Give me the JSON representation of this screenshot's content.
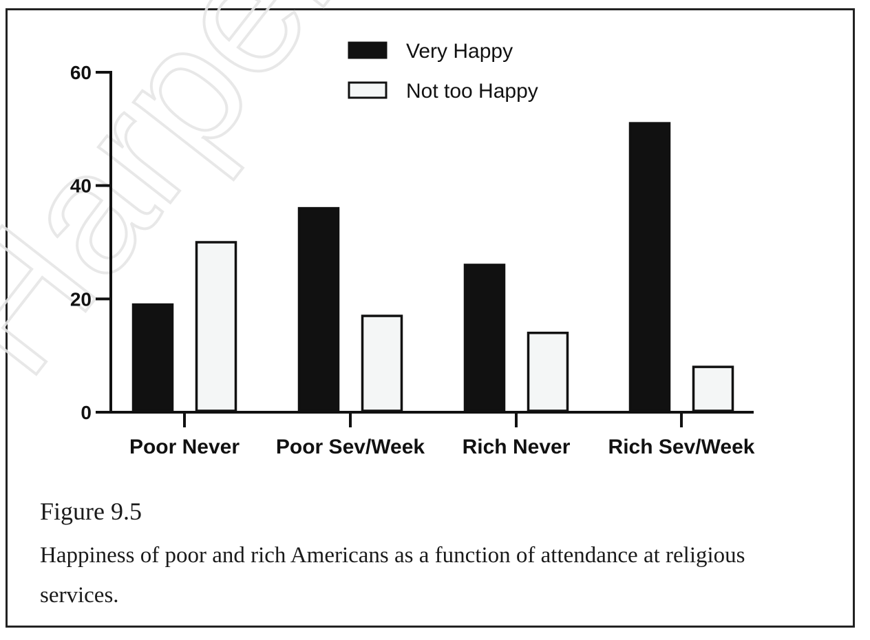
{
  "chart_data": {
    "type": "bar",
    "categories": [
      "Poor Never",
      "Poor Sev/Week",
      "Rich Never",
      "Rich Sev/Week"
    ],
    "series": [
      {
        "name": "Very Happy",
        "values": [
          19,
          36,
          26,
          51
        ],
        "color": "#111111"
      },
      {
        "name": "Not too Happy",
        "values": [
          30,
          17,
          14,
          8
        ],
        "color": "#f4f6f6"
      }
    ],
    "yticks": [
      0,
      20,
      40,
      60
    ],
    "ylim": [
      0,
      60
    ],
    "legend_position": "top-center",
    "grid": false
  },
  "caption": {
    "title": "Figure 9.5",
    "text": "Happiness of poor and rich Americans as a function of attendance at religious services."
  },
  "watermark_text": "HarperCollins"
}
